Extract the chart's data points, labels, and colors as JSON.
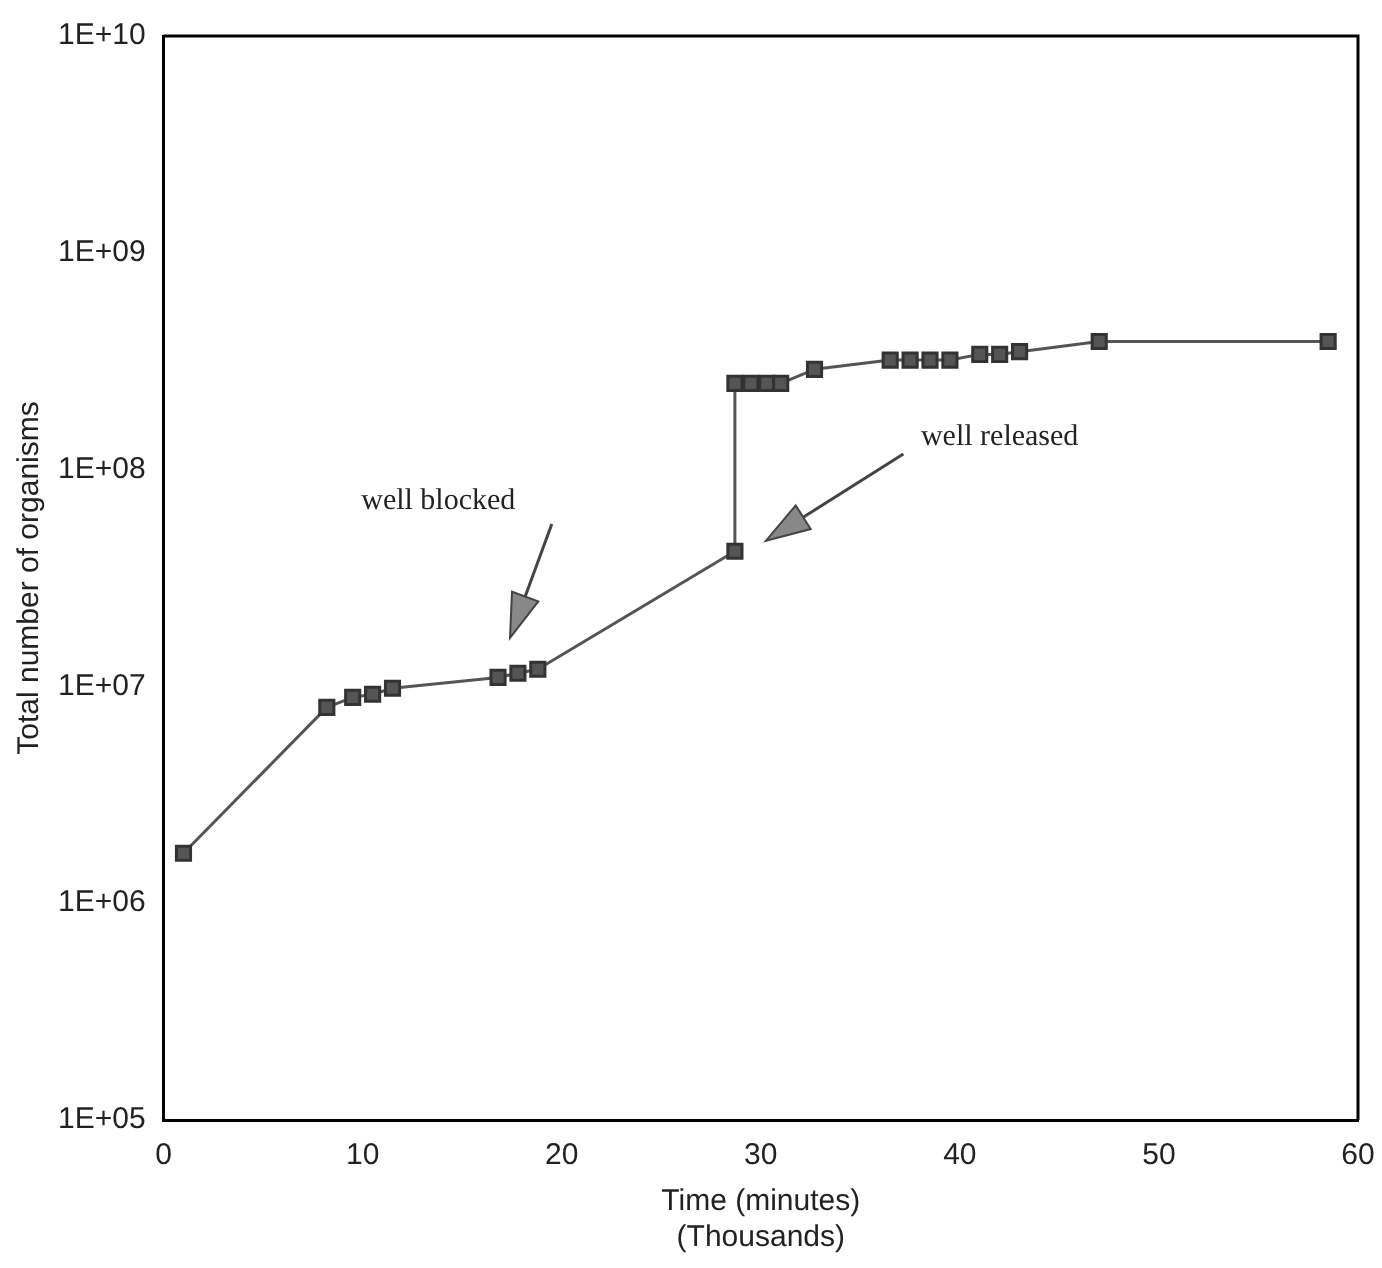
{
  "chart_data": {
    "type": "line",
    "xlabel": "Time (minutes)\n(Thousands)",
    "ylabel": "Total number of organisms",
    "x": [
      1,
      8.2,
      9.5,
      10.5,
      11.5,
      16.8,
      17.8,
      18.8,
      28.7,
      28.7,
      29.5,
      30.3,
      31,
      32.7,
      36.5,
      37.5,
      38.5,
      39.5,
      41,
      42,
      43,
      47,
      58.5
    ],
    "series": [
      {
        "color": "#555555",
        "values": [
          1700000,
          8000000,
          8900000,
          9200000,
          9800000,
          11000000,
          11500000,
          12000000,
          42000000,
          250000000,
          250000000,
          250000000,
          250000000,
          290000000,
          320000000,
          320000000,
          320000000,
          320000000,
          340000000,
          340000000,
          350000000,
          390000000,
          390000000
        ]
      }
    ],
    "log": "y",
    "xlim": [
      0,
      60
    ],
    "xticks": [
      0,
      10,
      20,
      30,
      40,
      50,
      60
    ],
    "ylim": [
      100000,
      10000000000
    ],
    "yticks": [
      {
        "value": 100000,
        "label": "1E+05"
      },
      {
        "value": 1000000,
        "label": "1E+06"
      },
      {
        "value": 10000000,
        "label": "1E+07"
      },
      {
        "value": 100000000,
        "label": "1E+08"
      },
      {
        "value": 1000000000,
        "label": "1E+09"
      },
      {
        "value": 10000000000,
        "label": "1E+10"
      }
    ],
    "annotations": [
      "well blocked",
      "well released"
    ],
    "grid": false,
    "legend": false,
    "marker": "square",
    "line_style": "solid"
  }
}
